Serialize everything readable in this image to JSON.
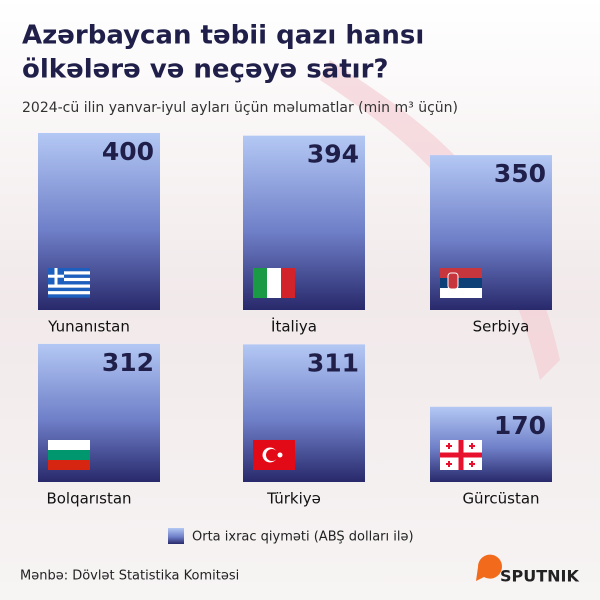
{
  "chart_data": {
    "type": "bar",
    "title": [
      "Azərbaycan təbii qazı hansı",
      "ölkələrə və neçəyə satır?"
    ],
    "subtitle": "2024-cü ilin yanvar-iyul ayları üçün məlumatlar (min m³ üçün)",
    "categories": [
      "Yunanıstan",
      "İtaliya",
      "Serbiya",
      "Bolqarıstan",
      "Türkiyə",
      "Gürcüstan"
    ],
    "values": [
      400,
      394,
      350,
      312,
      311,
      170
    ],
    "legend": "Orta ixrac qiyməti (ABŞ dolları ilə)",
    "source": "Mənbə: Dövlət Statistika Komitəsi",
    "logo": "SPUTNIK"
  }
}
